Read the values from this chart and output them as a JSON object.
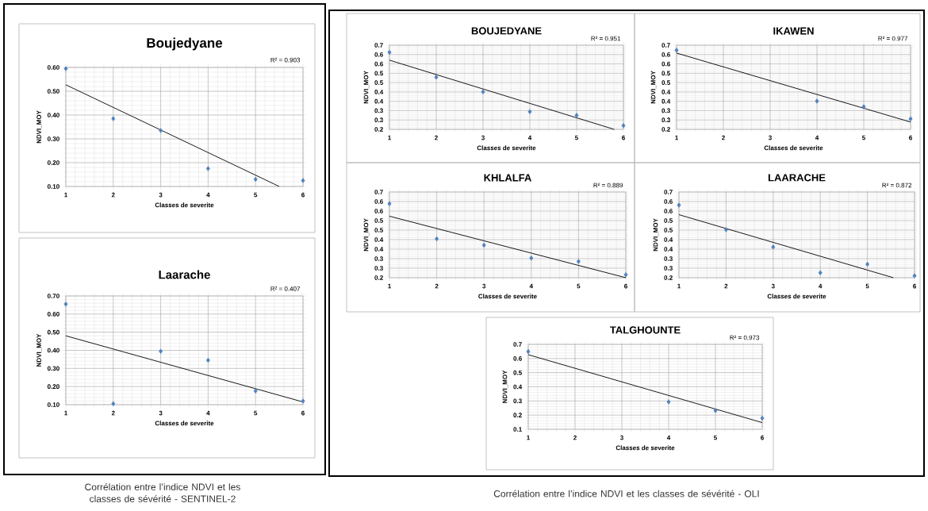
{
  "chart_data": [
    {
      "type": "scatter",
      "title": "Boujedyane",
      "xlabel": "Classes de severite",
      "ylabel": "NDVI_MOY",
      "xlim": [
        1,
        6
      ],
      "xticks": [
        1,
        2,
        3,
        4,
        5,
        6
      ],
      "ylim": [
        0.1,
        0.6
      ],
      "yticks": [
        {
          "value": 0.1,
          "label": "0.10"
        },
        {
          "value": 0.2,
          "label": "0.20"
        },
        {
          "value": 0.3,
          "label": "0.30"
        },
        {
          "value": 0.4,
          "label": "0.40"
        },
        {
          "value": 0.5,
          "label": "0.50"
        },
        {
          "value": 0.6,
          "label": "0.60"
        }
      ],
      "grid": true,
      "marker": "diamond",
      "annotations": [
        "R² = 0.903"
      ],
      "series": [
        {
          "color": "#4f81bd",
          "x": [
            1,
            2,
            3,
            4,
            5,
            6
          ],
          "values": [
            0.595,
            0.385,
            0.335,
            0.175,
            0.13,
            0.125
          ]
        },
        {
          "type": "line",
          "marker": "none",
          "color": "#000000",
          "x": [
            1,
            5.5
          ],
          "values": [
            0.527,
            0.1
          ]
        }
      ]
    },
    {
      "type": "scatter",
      "title": "Laarache",
      "xlabel": "Classes de severite",
      "ylabel": "NDVI_MOY",
      "xlim": [
        1,
        6
      ],
      "xticks": [
        1,
        2,
        3,
        4,
        5,
        6
      ],
      "ylim": [
        0.1,
        0.7
      ],
      "yticks": [
        {
          "value": 0.1,
          "label": "0.10"
        },
        {
          "value": 0.2,
          "label": "0.20"
        },
        {
          "value": 0.3,
          "label": "0.30"
        },
        {
          "value": 0.4,
          "label": "0.40"
        },
        {
          "value": 0.5,
          "label": "0.50"
        },
        {
          "value": 0.6,
          "label": "0.60"
        },
        {
          "value": 0.7,
          "label": "0.70"
        }
      ],
      "grid": true,
      "marker": "diamond",
      "annotations": [
        "R² = 0.407",
        "Corrélation entre l’indice NDVI et les classes de sévérité - SENTINEL-2"
      ],
      "series": [
        {
          "color": "#4f81bd",
          "x": [
            1,
            2,
            3,
            4,
            5,
            6
          ],
          "values": [
            0.655,
            0.105,
            0.395,
            0.345,
            0.175,
            0.12
          ]
        },
        {
          "type": "line",
          "marker": "none",
          "color": "#000000",
          "x": [
            1,
            6
          ],
          "values": [
            0.48,
            0.115
          ]
        }
      ]
    },
    {
      "type": "scatter",
      "title": "BOUJEDYANE",
      "xlabel": "Classes de severite",
      "ylabel": "NDVI_MOY",
      "xlim": [
        1,
        6
      ],
      "xticks": [
        1,
        2,
        3,
        4,
        5,
        6
      ],
      "ylim": [
        0.2,
        0.65
      ],
      "yticks": [
        0.2,
        {
          "value": 0.25,
          "label": "0.3"
        },
        0.3,
        {
          "value": 0.35,
          "label": "0.4"
        },
        0.4,
        {
          "value": 0.45,
          "label": "0.5"
        },
        0.5,
        {
          "value": 0.55,
          "label": "0.6"
        },
        0.6,
        {
          "value": 0.65,
          "label": "0.7"
        }
      ],
      "grid": true,
      "marker": "diamond",
      "annotations": [
        "R² = 0.951"
      ],
      "series": [
        {
          "color": "#4f81bd",
          "x": [
            1,
            2,
            3,
            4,
            5,
            6
          ],
          "values": [
            0.612,
            0.479,
            0.401,
            0.294,
            0.275,
            0.22
          ]
        },
        {
          "type": "line",
          "marker": "none",
          "color": "#000000",
          "x": [
            1,
            5.8
          ],
          "values": [
            0.57,
            0.2
          ]
        }
      ]
    },
    {
      "type": "scatter",
      "title": "IKAWEN",
      "xlabel": "Classes de severite",
      "ylabel": "NDVI_MOY",
      "xlim": [
        1,
        6
      ],
      "xticks": [
        1,
        2,
        3,
        4,
        5,
        6
      ],
      "ylim": [
        0.2,
        0.65
      ],
      "yticks": [
        0.2,
        {
          "value": 0.25,
          "label": "0.3"
        },
        0.3,
        {
          "value": 0.35,
          "label": "0.4"
        },
        0.4,
        {
          "value": 0.45,
          "label": "0.5"
        },
        0.5,
        {
          "value": 0.55,
          "label": "0.6"
        },
        0.6,
        {
          "value": 0.65,
          "label": "0.7"
        }
      ],
      "grid": true,
      "marker": "diamond",
      "annotations": [
        "R² = 0.977"
      ],
      "series": [
        {
          "color": "#4f81bd",
          "x": [
            1,
            4,
            5,
            6
          ],
          "values": [
            0.623,
            0.351,
            0.321,
            0.256
          ]
        },
        {
          "type": "line",
          "marker": "none",
          "color": "#000000",
          "x": [
            1,
            6
          ],
          "values": [
            0.608,
            0.239
          ]
        }
      ]
    },
    {
      "type": "scatter",
      "title": "KHLALFA",
      "xlabel": "Classes de severite",
      "ylabel": "NDVI_MOY",
      "xlim": [
        1,
        6
      ],
      "xticks": [
        1,
        2,
        3,
        4,
        5,
        6
      ],
      "ylim": [
        0.2,
        0.65
      ],
      "yticks": [
        0.2,
        {
          "value": 0.25,
          "label": "0.3"
        },
        0.3,
        {
          "value": 0.35,
          "label": "0.4"
        },
        0.4,
        {
          "value": 0.45,
          "label": "0.5"
        },
        0.5,
        {
          "value": 0.55,
          "label": "0.6"
        },
        0.6,
        {
          "value": 0.65,
          "label": "0.7"
        }
      ],
      "grid": true,
      "marker": "diamond",
      "annotations": [
        "R² = 0.889"
      ],
      "series": [
        {
          "color": "#4f81bd",
          "x": [
            1,
            2,
            3,
            4,
            5,
            6
          ],
          "values": [
            0.589,
            0.404,
            0.371,
            0.303,
            0.285,
            0.216
          ]
        },
        {
          "type": "line",
          "marker": "none",
          "color": "#000000",
          "x": [
            1,
            6
          ],
          "values": [
            0.523,
            0.2
          ]
        }
      ]
    },
    {
      "type": "scatter",
      "title": "LAARACHE",
      "xlabel": "Classes de severite",
      "ylabel": "NDVI_MOY",
      "xlim": [
        1,
        6
      ],
      "xticks": [
        1,
        2,
        3,
        4,
        5,
        6
      ],
      "ylim": [
        0.2,
        0.65
      ],
      "yticks": [
        0.2,
        {
          "value": 0.25,
          "label": "0.3"
        },
        0.3,
        {
          "value": 0.35,
          "label": "0.4"
        },
        0.4,
        {
          "value": 0.45,
          "label": "0.5"
        },
        0.5,
        {
          "value": 0.55,
          "label": "0.6"
        },
        0.6,
        {
          "value": 0.65,
          "label": "0.7"
        }
      ],
      "grid": true,
      "marker": "diamond",
      "annotations": [
        "R² = 0.872"
      ],
      "series": [
        {
          "color": "#4f81bd",
          "x": [
            1,
            2,
            3,
            4,
            5,
            6
          ],
          "values": [
            0.581,
            0.452,
            0.361,
            0.226,
            0.271,
            0.21
          ]
        },
        {
          "type": "line",
          "marker": "none",
          "color": "#000000",
          "x": [
            1,
            5.55
          ],
          "values": [
            0.531,
            0.2
          ]
        }
      ]
    },
    {
      "type": "scatter",
      "title": "TALGHOUNTE",
      "xlabel": "Classes de severite",
      "ylabel": "NDVI_MOY",
      "xlim": [
        1,
        6
      ],
      "xticks": [
        1,
        2,
        3,
        4,
        5,
        6
      ],
      "ylim": [
        0.1,
        0.7
      ],
      "yticks": [
        0.1,
        0.2,
        0.3,
        0.4,
        0.5,
        0.6,
        0.7
      ],
      "grid": true,
      "marker": "diamond",
      "annotations": [
        "R² = 0.973",
        "Corrélation entre l’indice NDVI  et les classes de sévérité - OLI"
      ],
      "series": [
        {
          "color": "#4f81bd",
          "x": [
            1,
            4,
            5,
            6
          ],
          "values": [
            0.649,
            0.294,
            0.232,
            0.178
          ]
        },
        {
          "type": "line",
          "marker": "none",
          "color": "#000000",
          "x": [
            1,
            6
          ],
          "values": [
            0.627,
            0.147
          ]
        }
      ]
    }
  ]
}
